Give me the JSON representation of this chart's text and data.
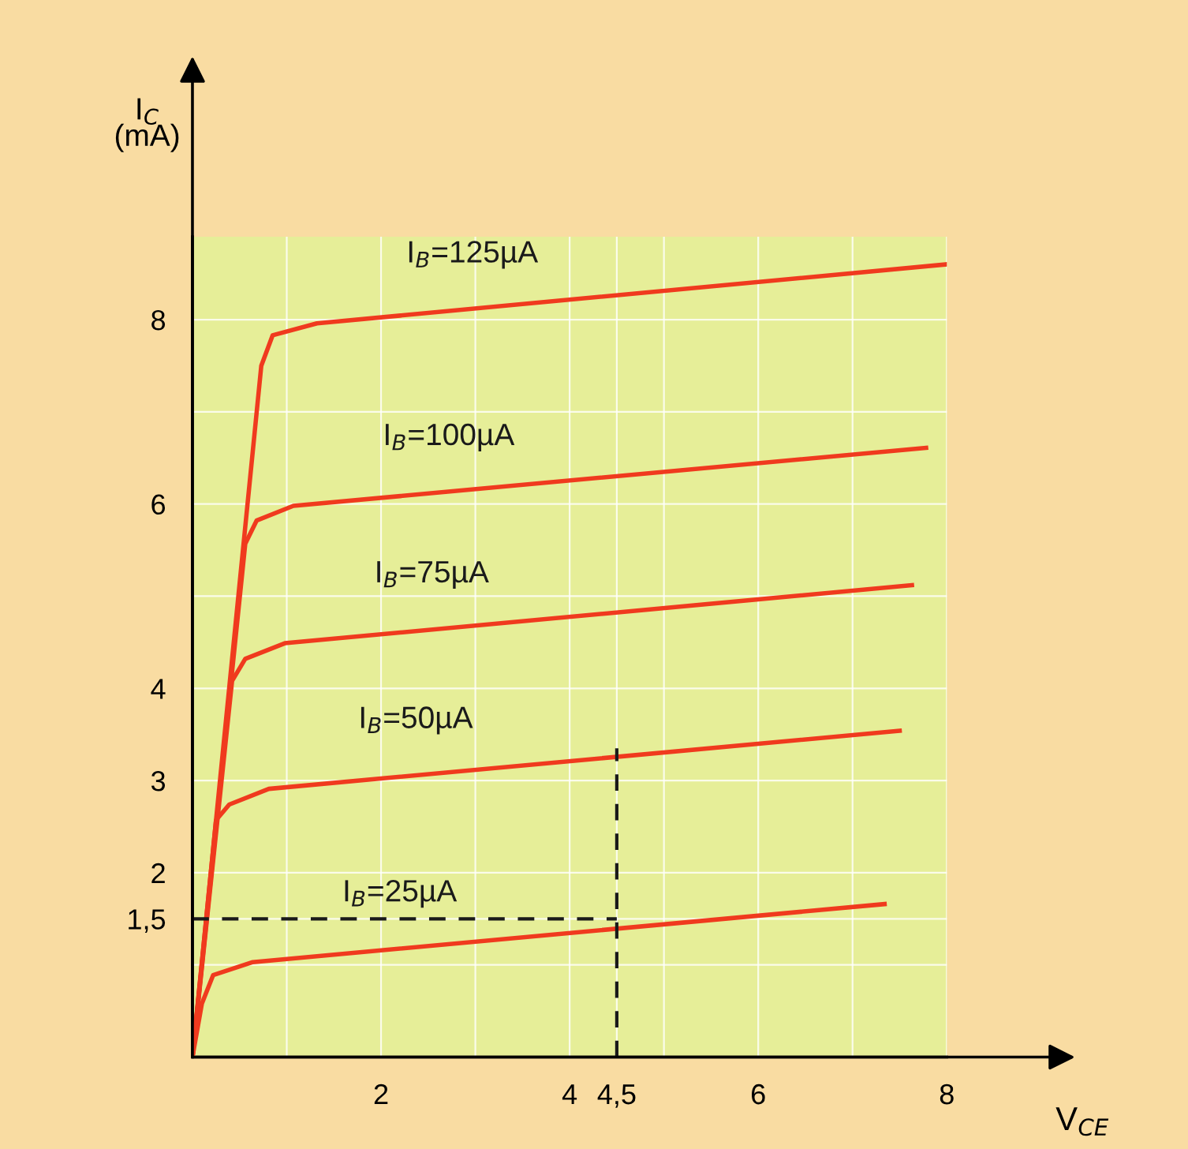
{
  "chart_data": {
    "type": "line",
    "xlabel": "V$_{CE}$",
    "ylabel": "I$_{C}$\n(mA)",
    "xlim": [
      0,
      8
    ],
    "ylim": [
      0,
      8.9
    ],
    "xticks": [
      {
        "value": 1,
        "label": null
      },
      2,
      {
        "value": 3,
        "label": null
      },
      4,
      {
        "value": 4.5,
        "label": "4,5"
      },
      {
        "value": 5,
        "label": null
      },
      6,
      {
        "value": 7,
        "label": null
      },
      8
    ],
    "yticks": [
      {
        "value": 1,
        "label": null
      },
      {
        "value": 1.5,
        "label": "1,5"
      },
      2,
      3,
      4,
      {
        "value": 5,
        "label": null
      },
      6,
      {
        "value": 7,
        "label": null
      },
      8
    ],
    "grid": true,
    "marker": "none",
    "line_style": "solid",
    "series": [
      {
        "name": "I$_{B}$=125µA",
        "color": "#f03a1e",
        "x": [
          0,
          0.73,
          0.85,
          1.32,
          8.0
        ],
        "values": [
          0,
          7.5,
          7.83,
          7.96,
          8.6
        ]
      },
      {
        "name": "I$_{B}$=100µA",
        "color": "#f03a1e",
        "x": [
          0,
          0.56,
          0.68,
          1.07,
          7.78
        ],
        "values": [
          0,
          5.57,
          5.82,
          5.98,
          6.61
        ]
      },
      {
        "name": "I$_{B}$=75µA",
        "color": "#f03a1e",
        "x": [
          0,
          0.42,
          0.56,
          0.98,
          7.63
        ],
        "values": [
          0,
          4.08,
          4.32,
          4.49,
          5.12
        ]
      },
      {
        "name": "I$_{B}$=50µA",
        "color": "#f03a1e",
        "x": [
          0,
          0.25,
          0.39,
          0.81,
          7.5
        ],
        "values": [
          0,
          2.57,
          2.74,
          2.91,
          3.54
        ]
      },
      {
        "name": "I$_{B}$=25µA",
        "color": "#f03a1e",
        "x": [
          0,
          0.1,
          0.22,
          0.64,
          7.34
        ],
        "values": [
          0,
          0.58,
          0.89,
          1.03,
          1.66
        ]
      },
      {
        "color": "#1a1a1a",
        "line_style": "dashed",
        "x": [
          0,
          4.5
        ],
        "values": [
          1.5,
          1.5
        ]
      },
      {
        "color": "#1a1a1a",
        "line_style": "dashed",
        "x": [
          4.5,
          4.5
        ],
        "values": [
          0,
          3.35
        ]
      }
    ]
  }
}
